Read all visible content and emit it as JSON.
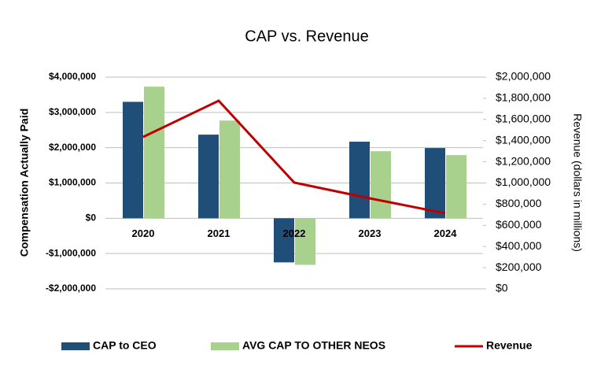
{
  "chart_data": {
    "type": "bar",
    "title": "CAP vs. Revenue",
    "y_label": "Compensation Actually Paid",
    "y2_label": "Revenue (dollars in millions)",
    "categories": [
      "2020",
      "2021",
      "2022",
      "2023",
      "2024"
    ],
    "series": [
      {
        "name": "CAP to CEO",
        "type": "bar",
        "color": "#1f4e79",
        "values": [
          3300000,
          2370000,
          -1250000,
          2170000,
          1990000
        ]
      },
      {
        "name": "AVG CAP TO OTHER NEOS",
        "type": "bar",
        "color": "#a9d18e",
        "values": [
          3730000,
          2770000,
          -1320000,
          1900000,
          1790000
        ]
      },
      {
        "name": "Revenue",
        "type": "line",
        "axis": "y2",
        "color": "#c00000",
        "values": [
          1435000,
          1777000,
          1004000,
          855000,
          714000
        ]
      }
    ],
    "ylim": [
      -2000000,
      4000000
    ],
    "yticks": [
      {
        "value": -2000000,
        "label": "-$2,000,000"
      },
      {
        "value": -1000000,
        "label": "-$1,000,000"
      },
      {
        "value": 0,
        "label": "$0"
      },
      {
        "value": 1000000,
        "label": "$1,000,000"
      },
      {
        "value": 2000000,
        "label": "$2,000,000"
      },
      {
        "value": 3000000,
        "label": "$3,000,000"
      },
      {
        "value": 4000000,
        "label": "$4,000,000"
      }
    ],
    "y2lim": [
      0,
      2000000
    ],
    "y2ticks": [
      {
        "value": 0,
        "label": "$0"
      },
      {
        "value": 200000,
        "label": "$200,000"
      },
      {
        "value": 400000,
        "label": "$400,000"
      },
      {
        "value": 600000,
        "label": "$600,000"
      },
      {
        "value": 800000,
        "label": "$800,000"
      },
      {
        "value": 1000000,
        "label": "$1,000,000"
      },
      {
        "value": 1200000,
        "label": "$1,200,000"
      },
      {
        "value": 1400000,
        "label": "$1,400,000"
      },
      {
        "value": 1600000,
        "label": "$1,600,000"
      },
      {
        "value": 1800000,
        "label": "$1,800,000"
      },
      {
        "value": 2000000,
        "label": "$2,000,000"
      }
    ],
    "grid": true,
    "legend": "bottom"
  }
}
